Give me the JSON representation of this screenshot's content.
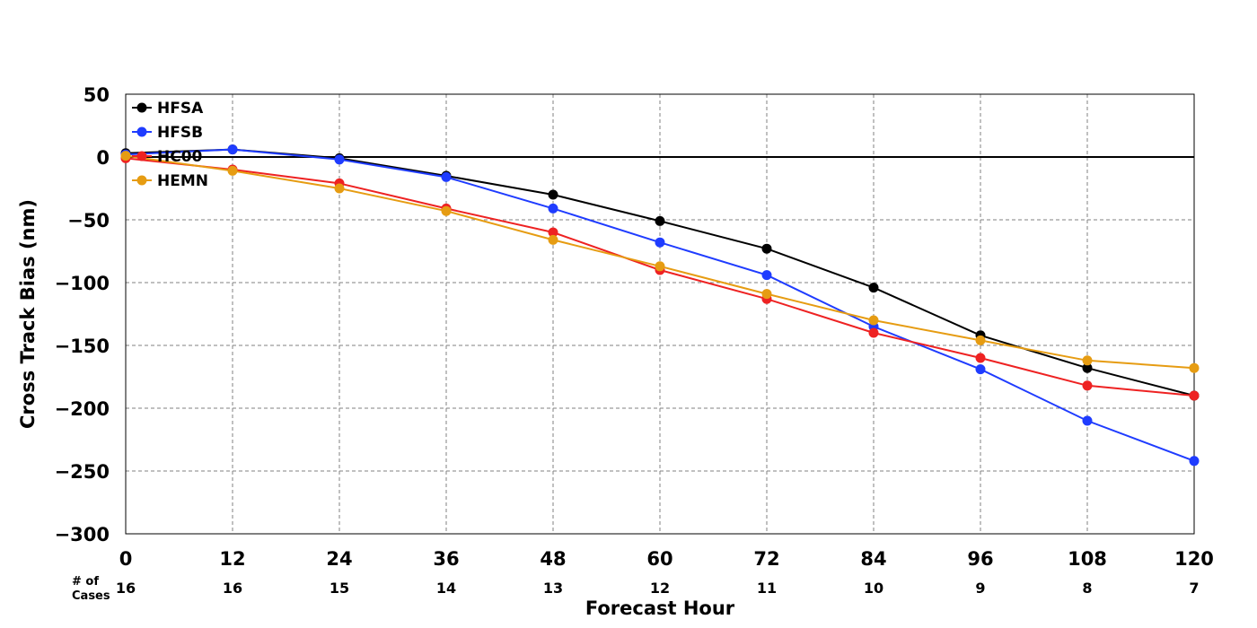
{
  "chart_data": {
    "type": "line",
    "xlabel": "Forecast Hour",
    "ylabel": "Cross Track Bias (nm)",
    "xlim": [
      0,
      120
    ],
    "ylim": [
      -300,
      50
    ],
    "x_ticks": [
      0,
      12,
      24,
      36,
      48,
      60,
      72,
      84,
      96,
      108,
      120
    ],
    "y_ticks": [
      50,
      0,
      -50,
      -100,
      -150,
      -200,
      -250,
      -300
    ],
    "y_tick_labels": [
      "50",
      "0",
      "−50",
      "−100",
      "−150",
      "−200",
      "−250",
      "−300"
    ],
    "grid": true,
    "legend": "top-left",
    "zero_line": true,
    "cases_label_line1": "# of",
    "cases_label_line2": "Cases",
    "cases": [
      16,
      16,
      15,
      14,
      13,
      12,
      11,
      10,
      9,
      8,
      7
    ],
    "x": [
      0,
      12,
      24,
      36,
      48,
      60,
      72,
      84,
      96,
      108,
      120
    ],
    "series": [
      {
        "name": "HFSA",
        "color": "#000000",
        "values": [
          3,
          6,
          -1,
          -15,
          -30,
          -51,
          -73,
          -104,
          -142,
          -168,
          -190
        ]
      },
      {
        "name": "HFSB",
        "color": "#1f3cff",
        "values": [
          2,
          6,
          -2,
          -16,
          -41,
          -68,
          -94,
          -135,
          -169,
          -210,
          -242
        ]
      },
      {
        "name": "HC00",
        "color": "#ee2222",
        "values": [
          -1,
          -10,
          -21,
          -41,
          -60,
          -90,
          -113,
          -140,
          -160,
          -182,
          -190
        ]
      },
      {
        "name": "HEMN",
        "color": "#e69c12",
        "values": [
          1,
          -11,
          -25,
          -43,
          -66,
          -87,
          -109,
          -130,
          -146,
          -162,
          -168
        ]
      }
    ]
  }
}
